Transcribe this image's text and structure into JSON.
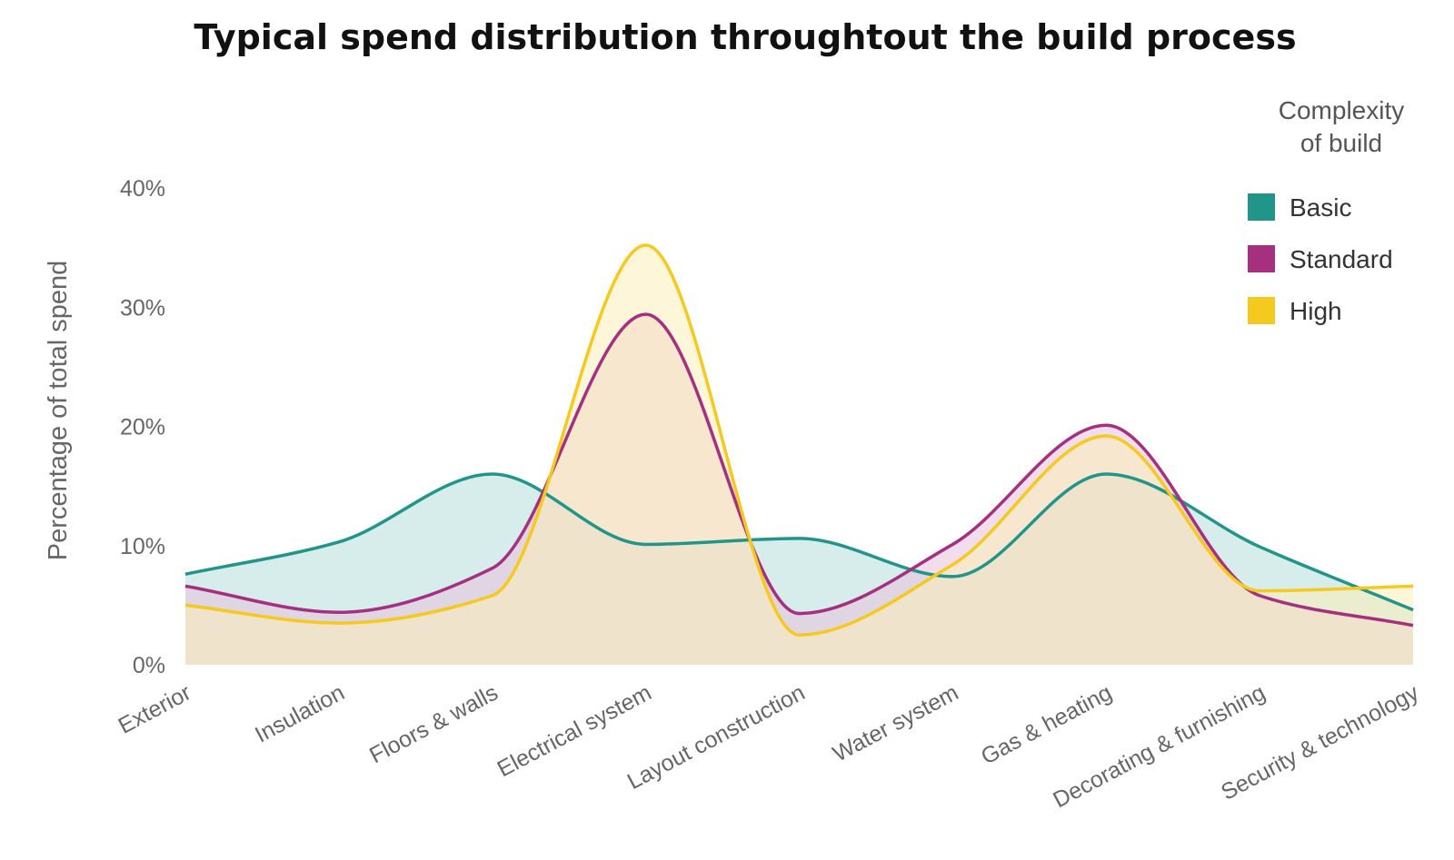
{
  "chart_data": {
    "type": "area",
    "title": "Typical spend distribution throughtout the build process",
    "xlabel": "",
    "ylabel": "Percentage of total spend",
    "ylim": [
      0,
      40
    ],
    "yticks": [
      0,
      10,
      20,
      30,
      40
    ],
    "ytick_labels": [
      "0%",
      "10%",
      "20%",
      "30%",
      "40%"
    ],
    "categories": [
      "Exterior",
      "Insulation",
      "Floors & walls",
      "Electrical system",
      "Layout construction",
      "Water system",
      "Gas & heating",
      "Decorating & furnishing",
      "Security & technology"
    ],
    "legend": {
      "title": [
        "Complexity",
        "of build"
      ],
      "position": "top-right"
    },
    "series": [
      {
        "name": "Basic",
        "color": "#21958a",
        "fill": "#b5dfdc",
        "values": [
          7.6,
          10.3,
          16.0,
          10.1,
          10.6,
          7.4,
          16.0,
          9.9,
          4.6
        ]
      },
      {
        "name": "Standard",
        "color": "#a5307f",
        "fill": "#e8c1dc",
        "values": [
          6.6,
          4.4,
          8.1,
          29.4,
          4.3,
          10.1,
          20.1,
          5.8,
          3.3
        ]
      },
      {
        "name": "High",
        "color": "#f6c91e",
        "fill": "#fcefb8",
        "values": [
          5.0,
          3.5,
          5.8,
          35.2,
          2.5,
          8.4,
          19.2,
          6.2,
          6.6
        ]
      }
    ]
  }
}
